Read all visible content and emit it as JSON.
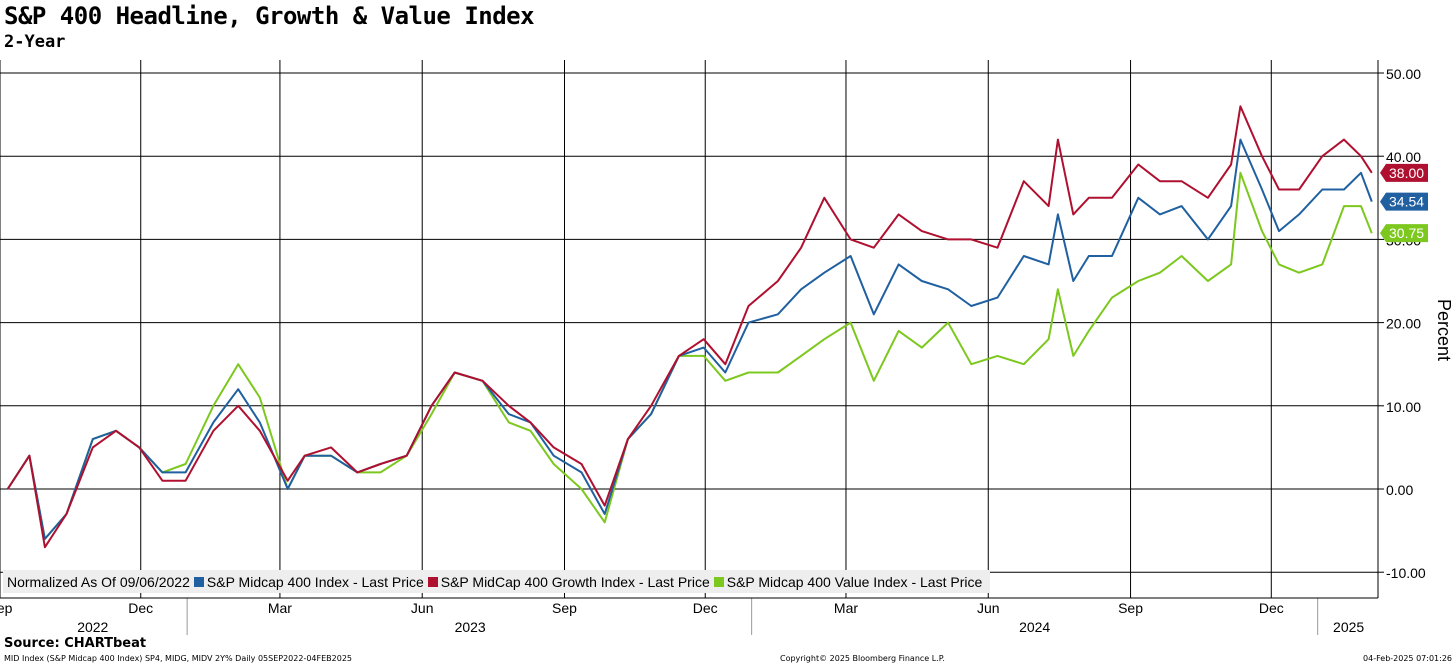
{
  "title": "S&P 400 Headline, Growth & Value Index",
  "subtitle": "2-Year",
  "source": "Source: CHARTbeat",
  "footer": {
    "left": "MID Index (S&P Midcap 400 Index) SP4, MIDG, MIDV 2Y%  Daily 05SEP2022-04FEB2025",
    "center": "Copyright© 2025 Bloomberg Finance L.P.",
    "right": "04-Feb-2025 07:01:26"
  },
  "legend": {
    "prefix": "Normalized As Of 09/06/2022",
    "items": [
      {
        "label": "S&P Midcap 400 Index - Last Price",
        "color": "#2060a0"
      },
      {
        "label": "S&P MidCap 400 Growth Index - Last Price",
        "color": "#b01030"
      },
      {
        "label": "S&P Midcap 400 Value Index - Last Price",
        "color": "#7dc81e"
      }
    ]
  },
  "chart_data": {
    "type": "line",
    "title": "S&P 400 Headline, Growth & Value Index",
    "subtitle": "2-Year",
    "ylabel": "Percent",
    "ylim": [
      -10,
      50
    ],
    "yticks": [
      -10,
      0,
      10,
      20,
      30,
      40,
      50
    ],
    "ytick_labels": [
      "-10.00",
      "0.00",
      "10.00",
      "20.00",
      "30.00",
      "40.00",
      "50.00"
    ],
    "x_range": [
      "2022-09-01",
      "2025-02-08"
    ],
    "x_months": [
      {
        "date": "2022-09-01",
        "label": "Sep"
      },
      {
        "date": "2022-12-01",
        "label": "Dec"
      },
      {
        "date": "2023-03-01",
        "label": "Mar"
      },
      {
        "date": "2023-06-01",
        "label": "Jun"
      },
      {
        "date": "2023-09-01",
        "label": "Sep"
      },
      {
        "date": "2023-12-01",
        "label": "Dec"
      },
      {
        "date": "2024-03-01",
        "label": "Mar"
      },
      {
        "date": "2024-06-01",
        "label": "Jun"
      },
      {
        "date": "2024-09-01",
        "label": "Sep"
      },
      {
        "date": "2024-12-01",
        "label": "Dec"
      }
    ],
    "x_years": [
      {
        "label": "2022",
        "center": "2022-10-31",
        "sep_after": "2022-12-31"
      },
      {
        "label": "2023",
        "center": "2023-07-02",
        "sep_after": "2023-12-31"
      },
      {
        "label": "2024",
        "center": "2024-07-01",
        "sep_after": "2024-12-31"
      },
      {
        "label": "2025",
        "center": "2025-01-20"
      }
    ],
    "x": [
      "2022-09-06",
      "2022-09-20",
      "2022-09-30",
      "2022-10-14",
      "2022-10-31",
      "2022-11-15",
      "2022-11-30",
      "2022-12-15",
      "2022-12-30",
      "2023-01-17",
      "2023-02-02",
      "2023-02-16",
      "2023-03-06",
      "2023-03-17",
      "2023-04-03",
      "2023-04-20",
      "2023-05-05",
      "2023-05-22",
      "2023-06-07",
      "2023-06-22",
      "2023-07-10",
      "2023-07-27",
      "2023-08-10",
      "2023-08-25",
      "2023-09-12",
      "2023-09-27",
      "2023-10-12",
      "2023-10-27",
      "2023-11-14",
      "2023-11-30",
      "2023-12-14",
      "2023-12-29",
      "2024-01-17",
      "2024-02-01",
      "2024-02-16",
      "2024-03-04",
      "2024-03-19",
      "2024-04-04",
      "2024-04-19",
      "2024-05-06",
      "2024-05-21",
      "2024-06-07",
      "2024-06-24",
      "2024-07-10",
      "2024-07-16",
      "2024-07-26",
      "2024-08-05",
      "2024-08-20",
      "2024-09-06",
      "2024-09-20",
      "2024-10-04",
      "2024-10-21",
      "2024-11-05",
      "2024-11-11",
      "2024-11-25",
      "2024-12-06",
      "2024-12-19",
      "2025-01-03",
      "2025-01-17",
      "2025-01-28",
      "2025-02-04"
    ],
    "series": [
      {
        "name": "S&P Midcap 400 Index - Last Price",
        "color": "#2060a0",
        "last": 34.54,
        "values": [
          0,
          4,
          -6,
          -3,
          6,
          7,
          5,
          2,
          2,
          8,
          12,
          8,
          0,
          4,
          4,
          2,
          3,
          4,
          10,
          14,
          13,
          9,
          8,
          4,
          2,
          -3,
          6,
          9,
          16,
          17,
          14,
          20,
          21,
          24,
          26,
          28,
          21,
          27,
          25,
          24,
          22,
          23,
          28,
          27,
          33,
          25,
          28,
          28,
          35,
          33,
          34,
          30,
          34,
          42,
          36,
          31,
          33,
          36,
          36,
          38,
          34.54
        ]
      },
      {
        "name": "S&P MidCap 400 Growth Index - Last Price",
        "color": "#b01030",
        "last": 38.0,
        "values": [
          0,
          4,
          -7,
          -3,
          5,
          7,
          5,
          1,
          1,
          7,
          10,
          7,
          1,
          4,
          5,
          2,
          3,
          4,
          10,
          14,
          13,
          10,
          8,
          5,
          3,
          -2,
          6,
          10,
          16,
          18,
          15,
          22,
          25,
          29,
          35,
          30,
          29,
          33,
          31,
          30,
          30,
          29,
          37,
          34,
          42,
          33,
          35,
          35,
          39,
          37,
          37,
          35,
          39,
          46,
          40,
          36,
          36,
          40,
          42,
          40,
          38.0
        ]
      },
      {
        "name": "S&P Midcap 400 Value Index - Last Price",
        "color": "#7dc81e",
        "last": 30.75,
        "values": [
          0,
          4,
          -6,
          -3,
          6,
          7,
          5,
          2,
          3,
          10,
          15,
          11,
          0,
          4,
          4,
          2,
          2,
          4,
          9,
          14,
          13,
          8,
          7,
          3,
          0,
          -4,
          6,
          9,
          16,
          16,
          13,
          14,
          14,
          16,
          18,
          20,
          13,
          19,
          17,
          20,
          15,
          16,
          15,
          18,
          24,
          16,
          19,
          23,
          25,
          26,
          28,
          25,
          27,
          38,
          31,
          27,
          26,
          27,
          34,
          34,
          30.75
        ]
      }
    ]
  }
}
